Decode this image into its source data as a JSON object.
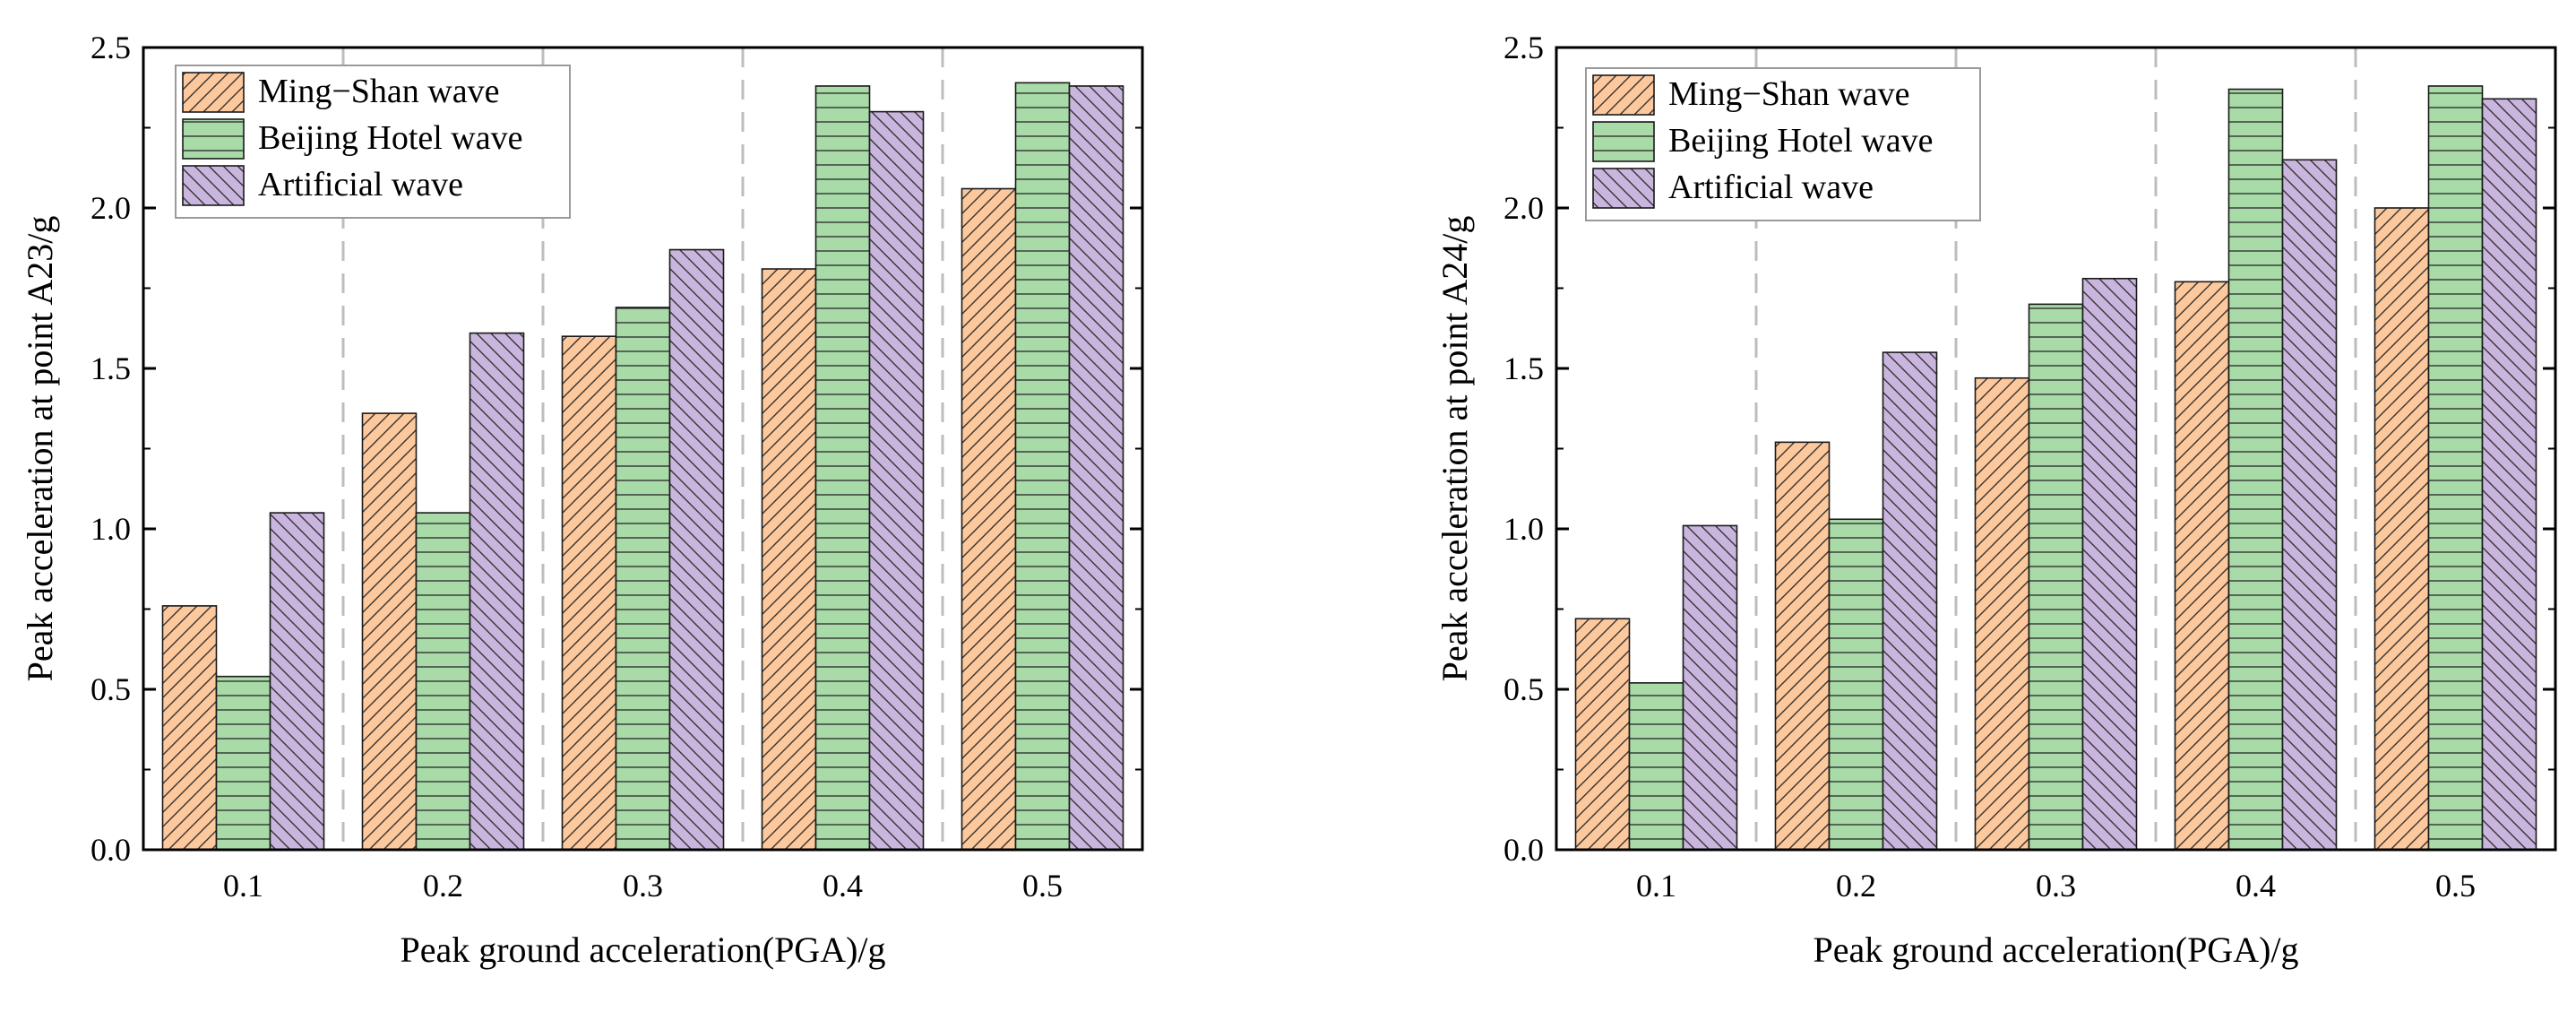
{
  "chart_data": [
    {
      "type": "bar",
      "title": "",
      "xlabel": "Peak ground acceleration(PGA)/g",
      "ylabel": "Peak acceleration at point A23/g",
      "categories": [
        "0.1",
        "0.2",
        "0.3",
        "0.4",
        "0.5"
      ],
      "ylim": [
        0,
        2.5
      ],
      "yticks": [
        "0.0",
        "0.5",
        "1.0",
        "1.5",
        "2.0",
        "2.5"
      ],
      "grid": "vertical dashed separators between groups",
      "legend_position": "top-left",
      "series": [
        {
          "name": "Ming−Shan wave",
          "values": [
            0.76,
            1.36,
            1.6,
            1.81,
            2.06
          ],
          "color": "#FDC89B",
          "pattern": "diagonal-forward"
        },
        {
          "name": "Beijing Hotel wave",
          "values": [
            0.54,
            1.05,
            1.69,
            2.38,
            2.39
          ],
          "color": "#A8DBA8",
          "pattern": "horizontal"
        },
        {
          "name": "Artificial wave",
          "values": [
            1.05,
            1.61,
            1.87,
            2.3,
            2.38
          ],
          "color": "#C9B5DE",
          "pattern": "diagonal-backward"
        }
      ]
    },
    {
      "type": "bar",
      "title": "",
      "xlabel": "Peak ground acceleration(PGA)/g",
      "ylabel": "Peak acceleration at point A24/g",
      "categories": [
        "0.1",
        "0.2",
        "0.3",
        "0.4",
        "0.5"
      ],
      "ylim": [
        0,
        2.5
      ],
      "yticks": [
        "0.0",
        "0.5",
        "1.0",
        "1.5",
        "2.0",
        "2.5"
      ],
      "grid": "vertical dashed separators between groups",
      "legend_position": "top-left",
      "series": [
        {
          "name": "Ming−Shan wave",
          "values": [
            0.72,
            1.27,
            1.47,
            1.77,
            2.0
          ],
          "color": "#FDC89B",
          "pattern": "diagonal-forward"
        },
        {
          "name": "Beijing Hotel wave",
          "values": [
            0.52,
            1.03,
            1.7,
            2.37,
            2.38
          ],
          "color": "#A8DBA8",
          "pattern": "horizontal"
        },
        {
          "name": "Artificial wave",
          "values": [
            1.01,
            1.55,
            1.78,
            2.15,
            2.34
          ],
          "color": "#C9B5DE",
          "pattern": "diagonal-backward"
        }
      ]
    }
  ]
}
